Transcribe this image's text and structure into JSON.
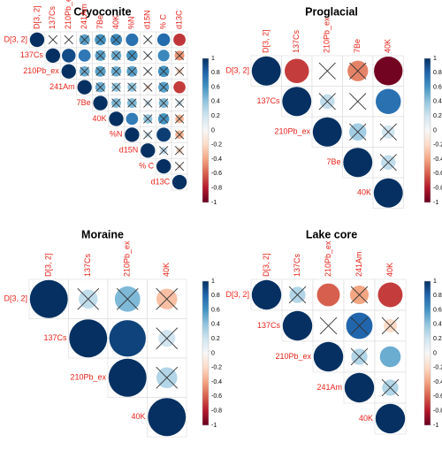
{
  "chart_data": [
    {
      "type": "heatmap",
      "title": "Cryoconite",
      "variables": [
        "D[3, 2]",
        "137Cs",
        "210Pb_ex",
        "241Am",
        "7Be",
        "40K",
        "%N",
        "d15N",
        "% C",
        "d13C"
      ],
      "values": [
        [
          1,
          0,
          0,
          0.55,
          0.6,
          0.65,
          0.75,
          0.1,
          0.78,
          -0.72
        ],
        [
          null,
          1,
          0.9,
          0.72,
          0.55,
          0.5,
          0.6,
          0.1,
          0.65,
          -0.45
        ],
        [
          null,
          null,
          1,
          0.5,
          0.55,
          0.5,
          0.55,
          0.1,
          0.6,
          -0.2
        ],
        [
          null,
          null,
          null,
          1,
          0.5,
          0.4,
          0.4,
          -0.15,
          0.55,
          -0.7
        ],
        [
          null,
          null,
          null,
          null,
          1,
          0.45,
          0.45,
          0.2,
          0.45,
          0.2
        ],
        [
          null,
          null,
          null,
          null,
          null,
          1,
          0.7,
          0.4,
          0.6,
          -0.35
        ],
        [
          null,
          null,
          null,
          null,
          null,
          null,
          1,
          0.2,
          0.95,
          -0.35
        ],
        [
          null,
          null,
          null,
          null,
          null,
          null,
          null,
          1,
          0.25,
          -0.2
        ],
        [
          null,
          null,
          null,
          null,
          null,
          null,
          null,
          null,
          1,
          -0.1
        ],
        [
          null,
          null,
          null,
          null,
          null,
          null,
          null,
          null,
          null,
          1
        ]
      ],
      "crossed": [
        [
          false,
          true,
          true,
          true,
          true,
          true,
          false,
          true,
          false,
          false
        ],
        [
          false,
          false,
          false,
          false,
          true,
          true,
          true,
          true,
          false,
          true
        ],
        [
          false,
          false,
          false,
          true,
          true,
          true,
          true,
          true,
          true,
          true
        ],
        [
          false,
          false,
          false,
          false,
          true,
          true,
          true,
          true,
          true,
          false
        ],
        [
          false,
          false,
          false,
          false,
          false,
          true,
          true,
          true,
          true,
          true
        ],
        [
          false,
          false,
          false,
          false,
          false,
          false,
          false,
          true,
          true,
          true
        ],
        [
          false,
          false,
          false,
          false,
          false,
          false,
          false,
          true,
          false,
          true
        ],
        [
          false,
          false,
          false,
          false,
          false,
          false,
          false,
          false,
          true,
          true
        ],
        [
          false,
          false,
          false,
          false,
          false,
          false,
          false,
          false,
          false,
          true
        ],
        [
          false,
          false,
          false,
          false,
          false,
          false,
          false,
          false,
          false,
          false
        ]
      ],
      "color_range": [
        -1,
        1
      ]
    },
    {
      "type": "heatmap",
      "title": "Proglacial",
      "variables": [
        "D[3, 2]",
        "137Cs",
        "210Pb_ex",
        "7Be",
        "40K"
      ],
      "values": [
        [
          1,
          -0.7,
          0,
          -0.5,
          -0.97
        ],
        [
          null,
          1,
          0.25,
          0,
          0.75
        ],
        [
          null,
          null,
          1,
          0.35,
          0.2
        ],
        [
          null,
          null,
          null,
          1,
          0.25
        ],
        [
          null,
          null,
          null,
          null,
          1
        ]
      ],
      "crossed": [
        [
          false,
          false,
          true,
          true,
          false
        ],
        [
          false,
          false,
          true,
          true,
          false
        ],
        [
          false,
          false,
          false,
          true,
          true
        ],
        [
          false,
          false,
          false,
          false,
          true
        ],
        [
          false,
          false,
          false,
          false,
          false
        ]
      ],
      "color_range": [
        -1,
        1
      ]
    },
    {
      "type": "heatmap",
      "title": "Moraine",
      "variables": [
        "D[3, 2]",
        "137Cs",
        "210Pb_ex",
        "40K"
      ],
      "values": [
        [
          1,
          0.25,
          0.45,
          -0.3
        ],
        [
          null,
          1,
          0.93,
          0.2
        ],
        [
          null,
          null,
          1,
          0.3
        ],
        [
          null,
          null,
          null,
          1
        ]
      ],
      "crossed": [
        [
          false,
          true,
          true,
          true
        ],
        [
          false,
          false,
          false,
          true
        ],
        [
          false,
          false,
          false,
          true
        ],
        [
          false,
          false,
          false,
          false
        ]
      ],
      "color_range": [
        -1,
        1
      ]
    },
    {
      "type": "heatmap",
      "title": "Lake core",
      "variables": [
        "D[3, 2]",
        "137Cs",
        "210Pb_ex",
        "241Am",
        "40K"
      ],
      "values": [
        [
          1,
          0.3,
          -0.6,
          -0.4,
          -0.7
        ],
        [
          null,
          1,
          0,
          0.8,
          -0.2
        ],
        [
          null,
          null,
          1,
          0.3,
          0.5
        ],
        [
          null,
          null,
          null,
          1,
          0.3
        ],
        [
          null,
          null,
          null,
          null,
          1
        ]
      ],
      "crossed": [
        [
          false,
          true,
          false,
          true,
          false
        ],
        [
          false,
          false,
          true,
          true,
          true
        ],
        [
          false,
          false,
          false,
          true,
          false
        ],
        [
          false,
          false,
          false,
          false,
          true
        ],
        [
          false,
          false,
          false,
          false,
          false
        ]
      ],
      "color_range": [
        -1,
        1
      ]
    }
  ],
  "colorbar_ticks": [
    "1",
    "0.8",
    "0.6",
    "0.4",
    "0.2",
    "0",
    "-0.2",
    "-0.4",
    "-0.6",
    "-0.8",
    "-1"
  ],
  "colors": {
    "positive_end": "#053061",
    "negative_end": "#67001f",
    "label": "#e8231a"
  }
}
